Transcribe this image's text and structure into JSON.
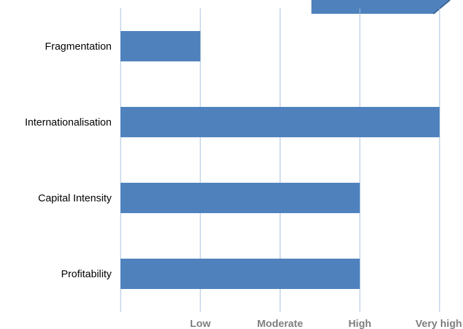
{
  "chart_data": {
    "type": "bar",
    "orientation": "horizontal",
    "categories": [
      "Fragmentation",
      "Internationalisation",
      "Capital Intensity",
      "Profitability"
    ],
    "values": [
      1,
      4,
      3,
      3
    ],
    "x_ticks": [
      {
        "value": 1,
        "label": "Low"
      },
      {
        "value": 2,
        "label": "Moderate"
      },
      {
        "value": 3,
        "label": "High"
      },
      {
        "value": 4,
        "label": "Very high"
      }
    ],
    "xlim": [
      0,
      4
    ],
    "grid": true,
    "title": "",
    "xlabel": "",
    "ylabel": "",
    "bar_color": "#4f81bd",
    "grid_color": "#a6bfdc"
  },
  "callout": {
    "color": "#4f81bd",
    "edge_color": "#3a6496"
  }
}
